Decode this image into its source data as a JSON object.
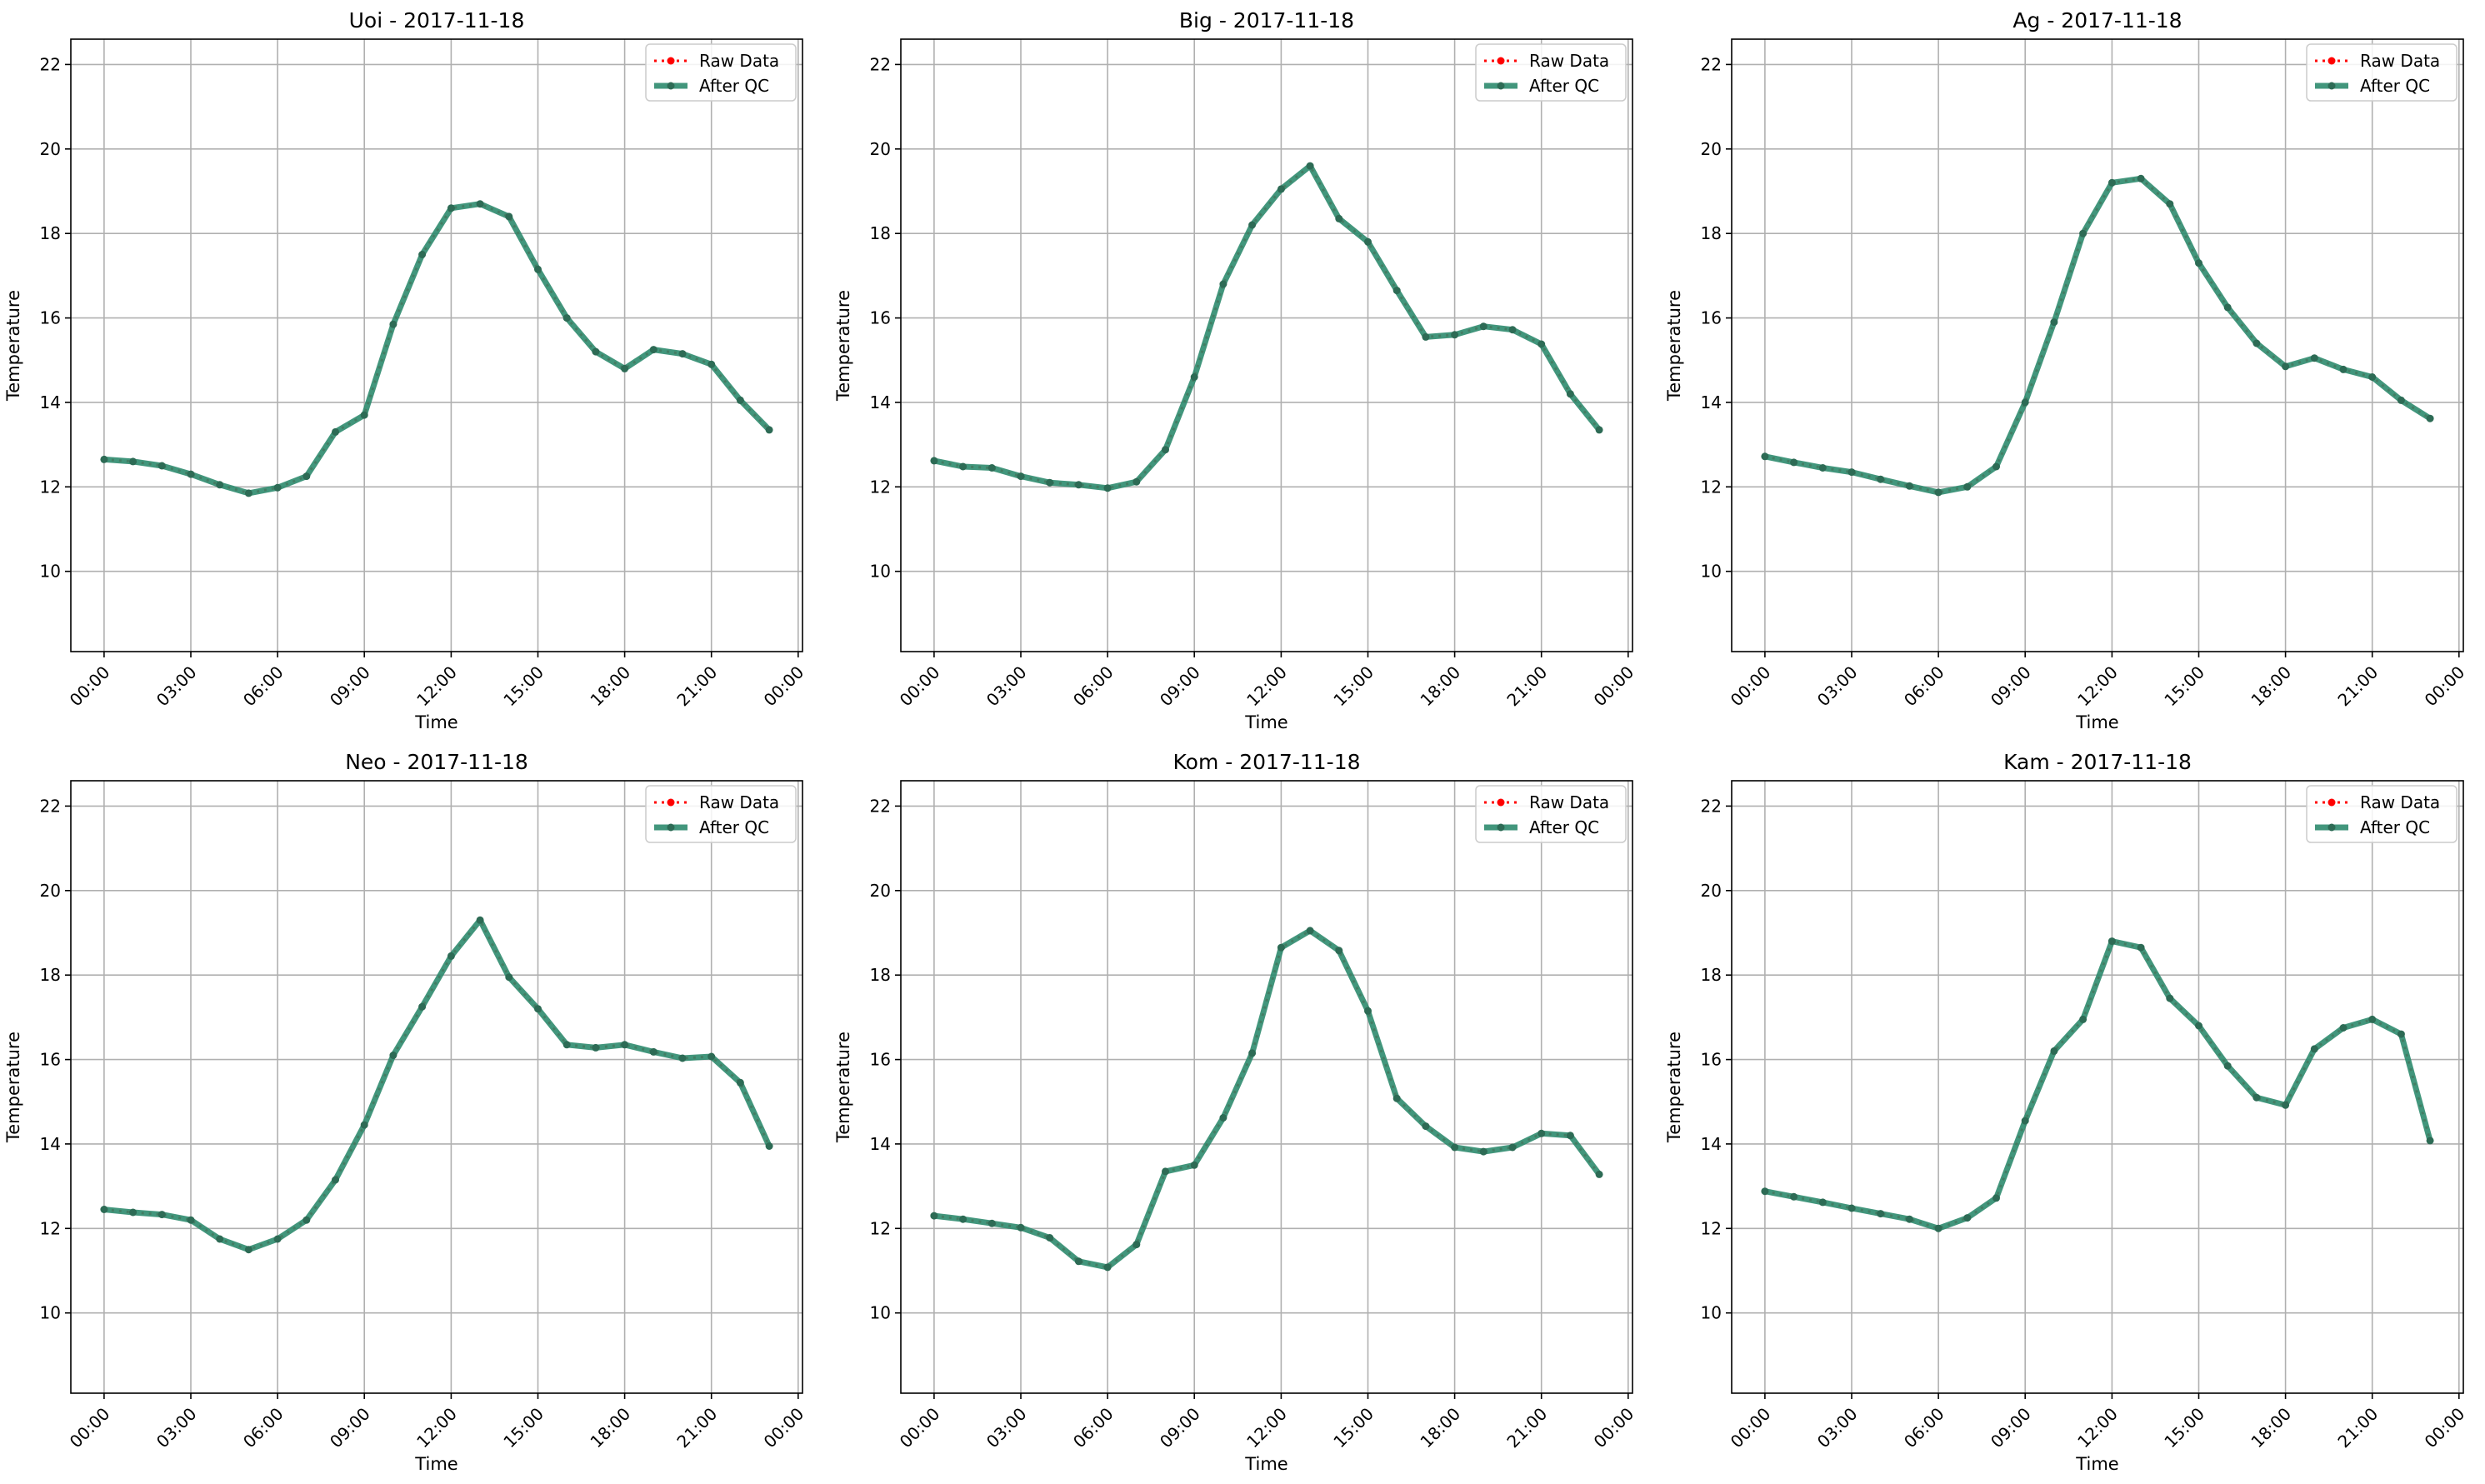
{
  "figure": {
    "colors": {
      "raw": "#ff0000",
      "qc": "#2e8b6e",
      "qc_marker": "#2d6b55",
      "grid": "#b0b0b0",
      "axes": "#000000"
    }
  },
  "chart_data": [
    {
      "type": "line",
      "title": "Uoi - 2017-11-18",
      "xlabel": "Time",
      "ylabel": "Temperature",
      "xticks": [
        "00:00",
        "03:00",
        "06:00",
        "09:00",
        "12:00",
        "15:00",
        "18:00",
        "21:00",
        "00:00"
      ],
      "yticks": [
        10,
        12,
        14,
        16,
        18,
        20,
        22
      ],
      "ylim": [
        8.1,
        22.6
      ],
      "grid": true,
      "legend_position": "top-right",
      "x_hours": [
        0,
        1,
        2,
        3,
        4,
        5,
        6,
        7,
        8,
        9,
        10,
        11,
        12,
        13,
        14,
        15,
        16,
        17,
        18,
        19,
        20,
        21,
        22,
        23
      ],
      "series": [
        {
          "name": "Raw Data",
          "values": [
            12.65,
            12.6,
            12.5,
            12.3,
            12.05,
            11.85,
            11.98,
            12.25,
            13.3,
            13.7,
            15.85,
            17.5,
            18.6,
            18.7,
            18.4,
            17.15,
            16.0,
            15.2,
            14.8,
            15.25,
            15.15,
            14.9,
            14.05,
            13.35
          ]
        },
        {
          "name": "After QC",
          "values": [
            12.65,
            12.6,
            12.5,
            12.3,
            12.05,
            11.85,
            11.98,
            12.25,
            13.3,
            13.7,
            15.85,
            17.5,
            18.6,
            18.7,
            18.4,
            17.15,
            16.0,
            15.2,
            14.8,
            15.25,
            15.15,
            14.9,
            14.05,
            13.35
          ]
        }
      ]
    },
    {
      "type": "line",
      "title": "Big - 2017-11-18",
      "xlabel": "Time",
      "ylabel": "Temperature",
      "xticks": [
        "00:00",
        "03:00",
        "06:00",
        "09:00",
        "12:00",
        "15:00",
        "18:00",
        "21:00",
        "00:00"
      ],
      "yticks": [
        10,
        12,
        14,
        16,
        18,
        20,
        22
      ],
      "ylim": [
        8.1,
        22.6
      ],
      "grid": true,
      "legend_position": "top-right",
      "x_hours": [
        0,
        1,
        2,
        3,
        4,
        5,
        6,
        7,
        8,
        9,
        10,
        11,
        12,
        13,
        14,
        15,
        16,
        17,
        18,
        19,
        20,
        21,
        22,
        23
      ],
      "series": [
        {
          "name": "Raw Data",
          "values": [
            12.62,
            12.48,
            12.45,
            12.25,
            12.1,
            12.05,
            11.97,
            12.12,
            12.88,
            14.6,
            16.8,
            18.2,
            19.05,
            19.6,
            18.35,
            17.8,
            16.65,
            15.55,
            15.6,
            15.8,
            15.72,
            15.38,
            14.2,
            13.35
          ]
        },
        {
          "name": "After QC",
          "values": [
            12.62,
            12.48,
            12.45,
            12.25,
            12.1,
            12.05,
            11.97,
            12.12,
            12.88,
            14.6,
            16.8,
            18.2,
            19.05,
            19.6,
            18.35,
            17.8,
            16.65,
            15.55,
            15.6,
            15.8,
            15.72,
            15.38,
            14.2,
            13.35
          ]
        }
      ]
    },
    {
      "type": "line",
      "title": "Ag - 2017-11-18",
      "xlabel": "Time",
      "ylabel": "Temperature",
      "xticks": [
        "00:00",
        "03:00",
        "06:00",
        "09:00",
        "12:00",
        "15:00",
        "18:00",
        "21:00",
        "00:00"
      ],
      "yticks": [
        10,
        12,
        14,
        16,
        18,
        20,
        22
      ],
      "ylim": [
        8.1,
        22.6
      ],
      "grid": true,
      "legend_position": "top-right",
      "x_hours": [
        0,
        1,
        2,
        3,
        4,
        5,
        6,
        7,
        8,
        9,
        10,
        11,
        12,
        13,
        14,
        15,
        16,
        17,
        18,
        19,
        20,
        21,
        22,
        23
      ],
      "series": [
        {
          "name": "Raw Data",
          "values": [
            12.72,
            12.58,
            12.45,
            12.35,
            12.18,
            12.02,
            11.87,
            12.0,
            12.48,
            14.0,
            15.9,
            18.0,
            19.2,
            19.3,
            18.7,
            17.3,
            16.25,
            15.4,
            14.85,
            15.05,
            14.78,
            14.6,
            14.05,
            13.62
          ]
        },
        {
          "name": "After QC",
          "values": [
            12.72,
            12.58,
            12.45,
            12.35,
            12.18,
            12.02,
            11.87,
            12.0,
            12.48,
            14.0,
            15.9,
            18.0,
            19.2,
            19.3,
            18.7,
            17.3,
            16.25,
            15.4,
            14.85,
            15.05,
            14.78,
            14.6,
            14.05,
            13.62
          ]
        }
      ]
    },
    {
      "type": "line",
      "title": "Neo - 2017-11-18",
      "xlabel": "Time",
      "ylabel": "Temperature",
      "xticks": [
        "00:00",
        "03:00",
        "06:00",
        "09:00",
        "12:00",
        "15:00",
        "18:00",
        "21:00",
        "00:00"
      ],
      "yticks": [
        10,
        12,
        14,
        16,
        18,
        20,
        22
      ],
      "ylim": [
        8.1,
        22.6
      ],
      "grid": true,
      "legend_position": "top-right",
      "x_hours": [
        0,
        1,
        2,
        3,
        4,
        5,
        6,
        7,
        8,
        9,
        10,
        11,
        12,
        13,
        14,
        15,
        16,
        17,
        18,
        19,
        20,
        21,
        22,
        23
      ],
      "series": [
        {
          "name": "Raw Data",
          "values": [
            12.45,
            12.38,
            12.33,
            12.2,
            11.75,
            11.5,
            11.75,
            12.2,
            13.15,
            14.45,
            16.1,
            17.25,
            18.45,
            19.3,
            17.95,
            17.2,
            16.35,
            16.28,
            16.35,
            16.18,
            16.03,
            16.07,
            15.45,
            13.95
          ]
        },
        {
          "name": "After QC",
          "values": [
            12.45,
            12.38,
            12.33,
            12.2,
            11.75,
            11.5,
            11.75,
            12.2,
            13.15,
            14.45,
            16.1,
            17.25,
            18.45,
            19.3,
            17.95,
            17.2,
            16.35,
            16.28,
            16.35,
            16.18,
            16.03,
            16.07,
            15.45,
            13.95
          ]
        }
      ]
    },
    {
      "type": "line",
      "title": "Kom - 2017-11-18",
      "xlabel": "Time",
      "ylabel": "Temperature",
      "xticks": [
        "00:00",
        "03:00",
        "06:00",
        "09:00",
        "12:00",
        "15:00",
        "18:00",
        "21:00",
        "00:00"
      ],
      "yticks": [
        10,
        12,
        14,
        16,
        18,
        20,
        22
      ],
      "ylim": [
        8.1,
        22.6
      ],
      "grid": true,
      "legend_position": "top-right",
      "x_hours": [
        0,
        1,
        2,
        3,
        4,
        5,
        6,
        7,
        8,
        9,
        10,
        11,
        12,
        13,
        14,
        15,
        16,
        17,
        18,
        19,
        20,
        21,
        22,
        23
      ],
      "series": [
        {
          "name": "Raw Data",
          "values": [
            12.3,
            12.22,
            12.12,
            12.02,
            11.78,
            11.22,
            11.08,
            11.62,
            13.35,
            13.5,
            14.62,
            16.15,
            18.65,
            19.05,
            18.58,
            17.15,
            15.08,
            14.42,
            13.92,
            13.82,
            13.92,
            14.25,
            14.2,
            13.28
          ]
        },
        {
          "name": "After QC",
          "values": [
            12.3,
            12.22,
            12.12,
            12.02,
            11.78,
            11.22,
            11.08,
            11.62,
            13.35,
            13.5,
            14.62,
            16.15,
            18.65,
            19.05,
            18.58,
            17.15,
            15.08,
            14.42,
            13.92,
            13.82,
            13.92,
            14.25,
            14.2,
            13.28
          ]
        }
      ]
    },
    {
      "type": "line",
      "title": "Kam - 2017-11-18",
      "xlabel": "Time",
      "ylabel": "Temperature",
      "xticks": [
        "00:00",
        "03:00",
        "06:00",
        "09:00",
        "12:00",
        "15:00",
        "18:00",
        "21:00",
        "00:00"
      ],
      "yticks": [
        10,
        12,
        14,
        16,
        18,
        20,
        22
      ],
      "ylim": [
        8.1,
        22.6
      ],
      "grid": true,
      "legend_position": "top-right",
      "x_hours": [
        0,
        1,
        2,
        3,
        4,
        5,
        6,
        7,
        8,
        9,
        10,
        11,
        12,
        13,
        14,
        15,
        16,
        17,
        18,
        19,
        20,
        21,
        22,
        23
      ],
      "series": [
        {
          "name": "Raw Data",
          "values": [
            12.88,
            12.75,
            12.62,
            12.48,
            12.35,
            12.22,
            12.0,
            12.25,
            12.72,
            14.55,
            16.2,
            16.95,
            18.8,
            18.65,
            17.45,
            16.8,
            15.85,
            15.1,
            14.92,
            16.25,
            16.75,
            16.95,
            16.6,
            14.08
          ]
        },
        {
          "name": "After QC",
          "values": [
            12.88,
            12.75,
            12.62,
            12.48,
            12.35,
            12.22,
            12.0,
            12.25,
            12.72,
            14.55,
            16.2,
            16.95,
            18.8,
            18.65,
            17.45,
            16.8,
            15.85,
            15.1,
            14.92,
            16.25,
            16.75,
            16.95,
            16.6,
            14.08
          ]
        }
      ]
    }
  ]
}
